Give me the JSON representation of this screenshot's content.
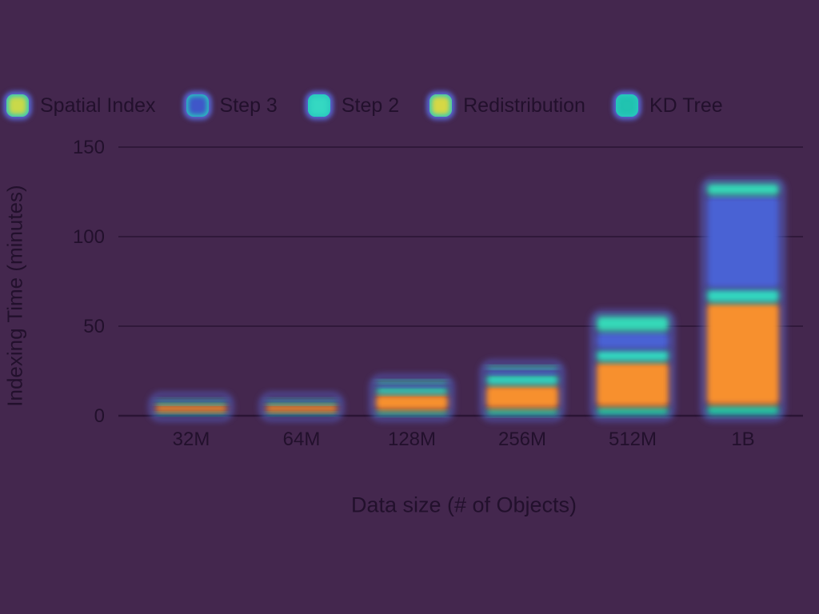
{
  "chart_data": {
    "type": "bar",
    "stacked": true,
    "xlabel": "Data size (# of Objects)",
    "ylabel": "Indexing Time (minutes)",
    "ylim": [
      0,
      150
    ],
    "yticks": [
      0,
      50,
      100,
      150
    ],
    "categories": [
      "32M",
      "64M",
      "128M",
      "256M",
      "512M",
      "1B"
    ],
    "legend": [
      "Spatial Index",
      "Step 3",
      "Step 2",
      "Redistribution",
      "KD Tree"
    ],
    "legend_placement": "top",
    "grid": true,
    "series": [
      {
        "name": "KD Tree",
        "color": "#21c4a4",
        "values": [
          2,
          2,
          3,
          4,
          5,
          6
        ]
      },
      {
        "name": "Redistribution",
        "color": "#f7902e",
        "values": [
          4,
          4,
          9,
          13,
          25,
          57
        ]
      },
      {
        "name": "Step 2",
        "color": "#30d6c0",
        "values": [
          2,
          2,
          4,
          6,
          7,
          8
        ]
      },
      {
        "name": "Step 3",
        "color": "#4a62d4",
        "values": [
          1,
          1,
          2,
          3,
          10,
          52
        ]
      },
      {
        "name": "Spatial Index",
        "color": "#35d8b8",
        "values": [
          1,
          1,
          2,
          2,
          9,
          7
        ]
      }
    ]
  },
  "legend_colors": {
    "Spatial Index": "#c9d94a",
    "Step 3": "#3f57c9",
    "Step 2": "#35d8c2",
    "Redistribution": "#d6d845",
    "KD Tree": "#21c3b0"
  },
  "theme": {
    "background": "#44274e",
    "text": "#22102c",
    "grid": "#2a1434"
  }
}
